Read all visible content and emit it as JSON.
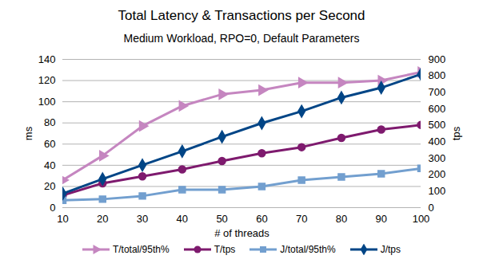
{
  "chart_data": {
    "type": "line",
    "title": "Total Latency & Transactions per Second",
    "subtitle": "Medium Workload, RPO=0, Default Parameters",
    "x_label": "# of threads",
    "y_label": "ms",
    "y2_label": "tps",
    "x": [
      10,
      20,
      30,
      40,
      50,
      60,
      70,
      80,
      90,
      100
    ],
    "xlim": [
      10,
      100
    ],
    "xticks": [
      10,
      20,
      30,
      40,
      50,
      60,
      70,
      80,
      90,
      100
    ],
    "ylim": [
      0,
      140
    ],
    "yticks": [
      0,
      20,
      40,
      60,
      80,
      100,
      120,
      140
    ],
    "y2lim": [
      0,
      900
    ],
    "y2ticks": [
      0,
      100,
      200,
      300,
      400,
      500,
      600,
      700,
      800,
      900
    ],
    "grid": true,
    "legend": "bottom",
    "series": [
      {
        "name": "T/total/95th%",
        "color": "#c586c0",
        "marker": "triangle-right",
        "values": [
          26,
          49,
          77,
          96,
          107,
          111,
          118,
          118,
          120,
          128
        ]
      },
      {
        "name": "T/tps",
        "color": "#7e1a6e",
        "marker": "circle",
        "axis": "y2",
        "values": [
          75,
          148,
          190,
          232,
          283,
          330,
          367,
          423,
          474,
          502
        ]
      },
      {
        "name": "J/total/95th%",
        "color": "#729fcf",
        "marker": "square",
        "values": [
          7,
          8,
          11,
          17,
          17,
          20,
          26,
          29,
          32,
          37
        ]
      },
      {
        "name": "J/tps",
        "color": "#004586",
        "marker": "diamond",
        "axis": "y2",
        "values": [
          85,
          174,
          258,
          342,
          430,
          513,
          585,
          668,
          728,
          810
        ]
      }
    ]
  }
}
